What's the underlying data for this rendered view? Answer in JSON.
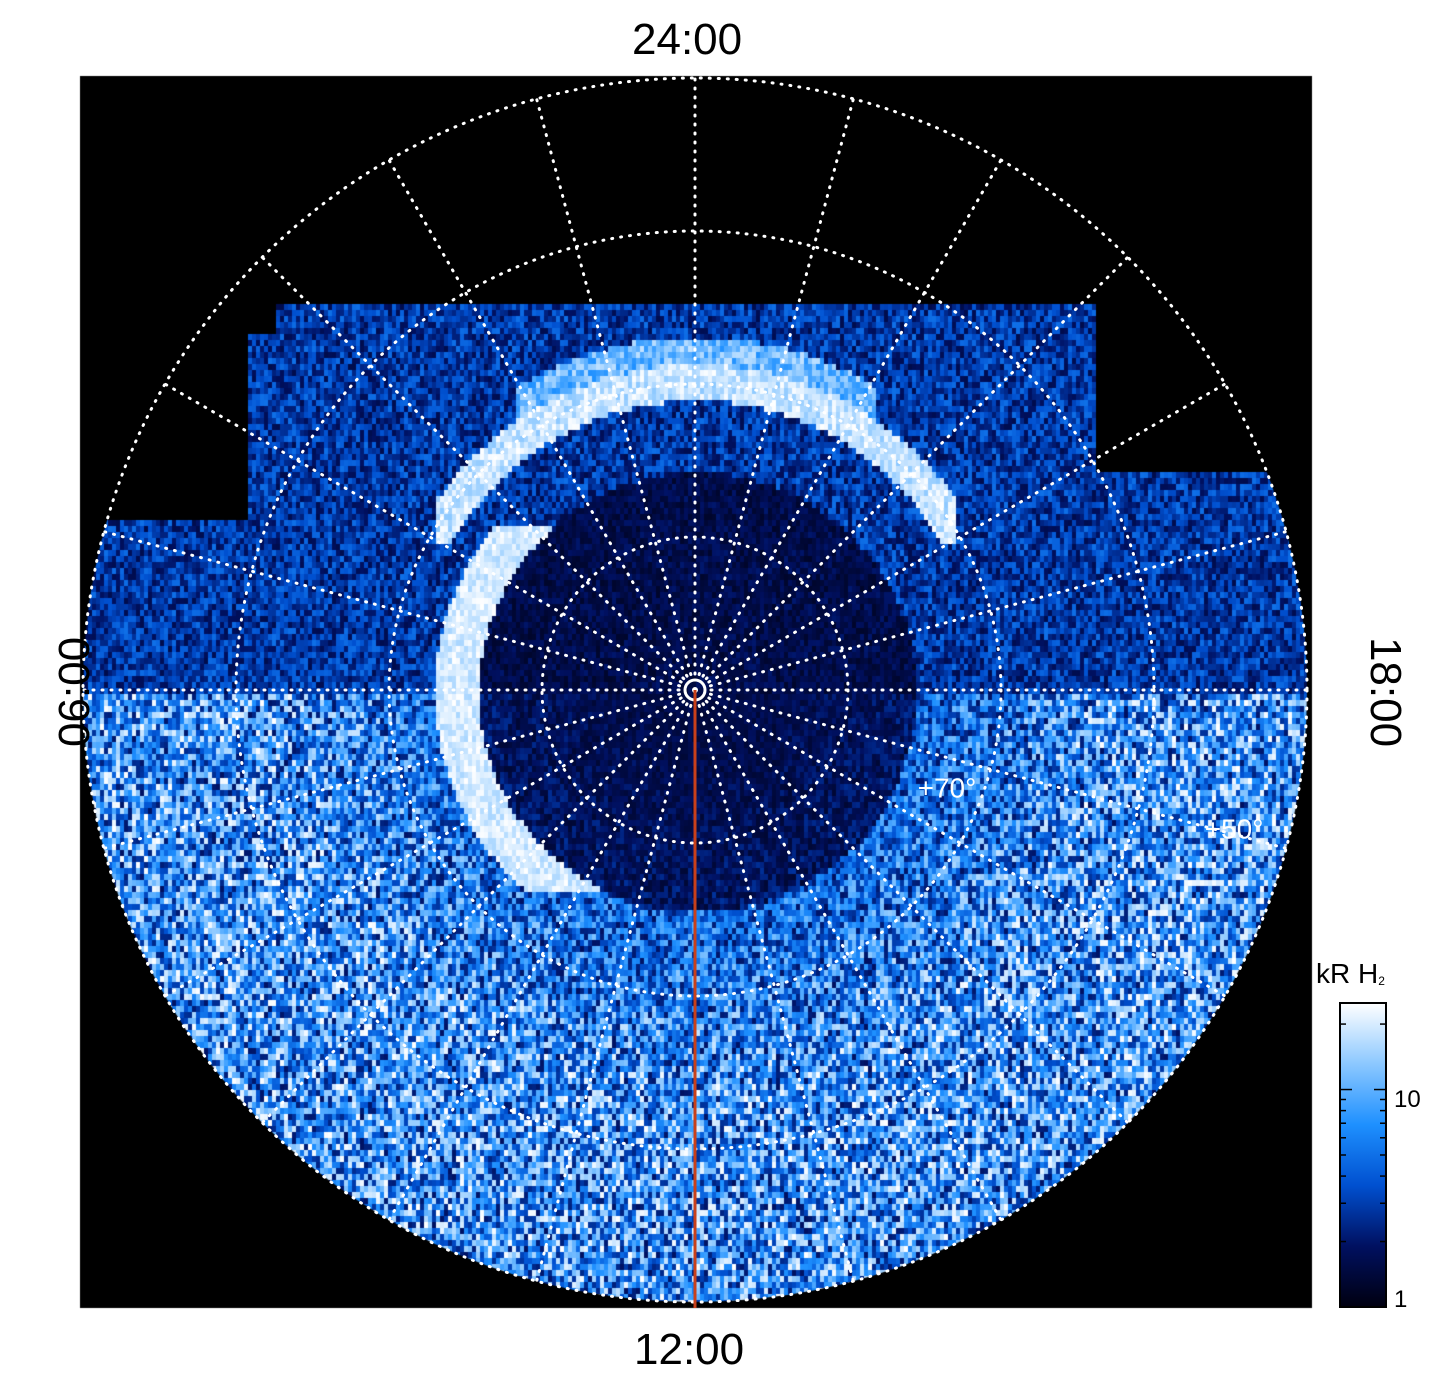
{
  "local_time_labels": {
    "top": "24:00",
    "bottom": "12:00",
    "left": "06:00",
    "right": "18:00"
  },
  "latitude_labels": [
    {
      "text": "+70°",
      "lat_deg": 70
    },
    {
      "text": "+50°",
      "lat_deg": 50
    }
  ],
  "colorbar": {
    "title_main": "kR H",
    "title_sub": "2",
    "scale": "log",
    "range": [
      1,
      25
    ],
    "tick_labels": [
      {
        "text": "10",
        "value": 10
      },
      {
        "text": "1",
        "value": 1
      }
    ],
    "colors": [
      "#000010",
      "#001060",
      "#0050d0",
      "#1e90ff",
      "#8cc8ff",
      "#ffffff"
    ]
  },
  "projection": {
    "type": "polar",
    "graticule_latitudes_deg": [
      90,
      80,
      70,
      60,
      50
    ],
    "graticule_lt_step_hours": 1,
    "background": "#000000",
    "grid_color": "#ffffff"
  },
  "noon_meridian_color": "#c8401a"
}
